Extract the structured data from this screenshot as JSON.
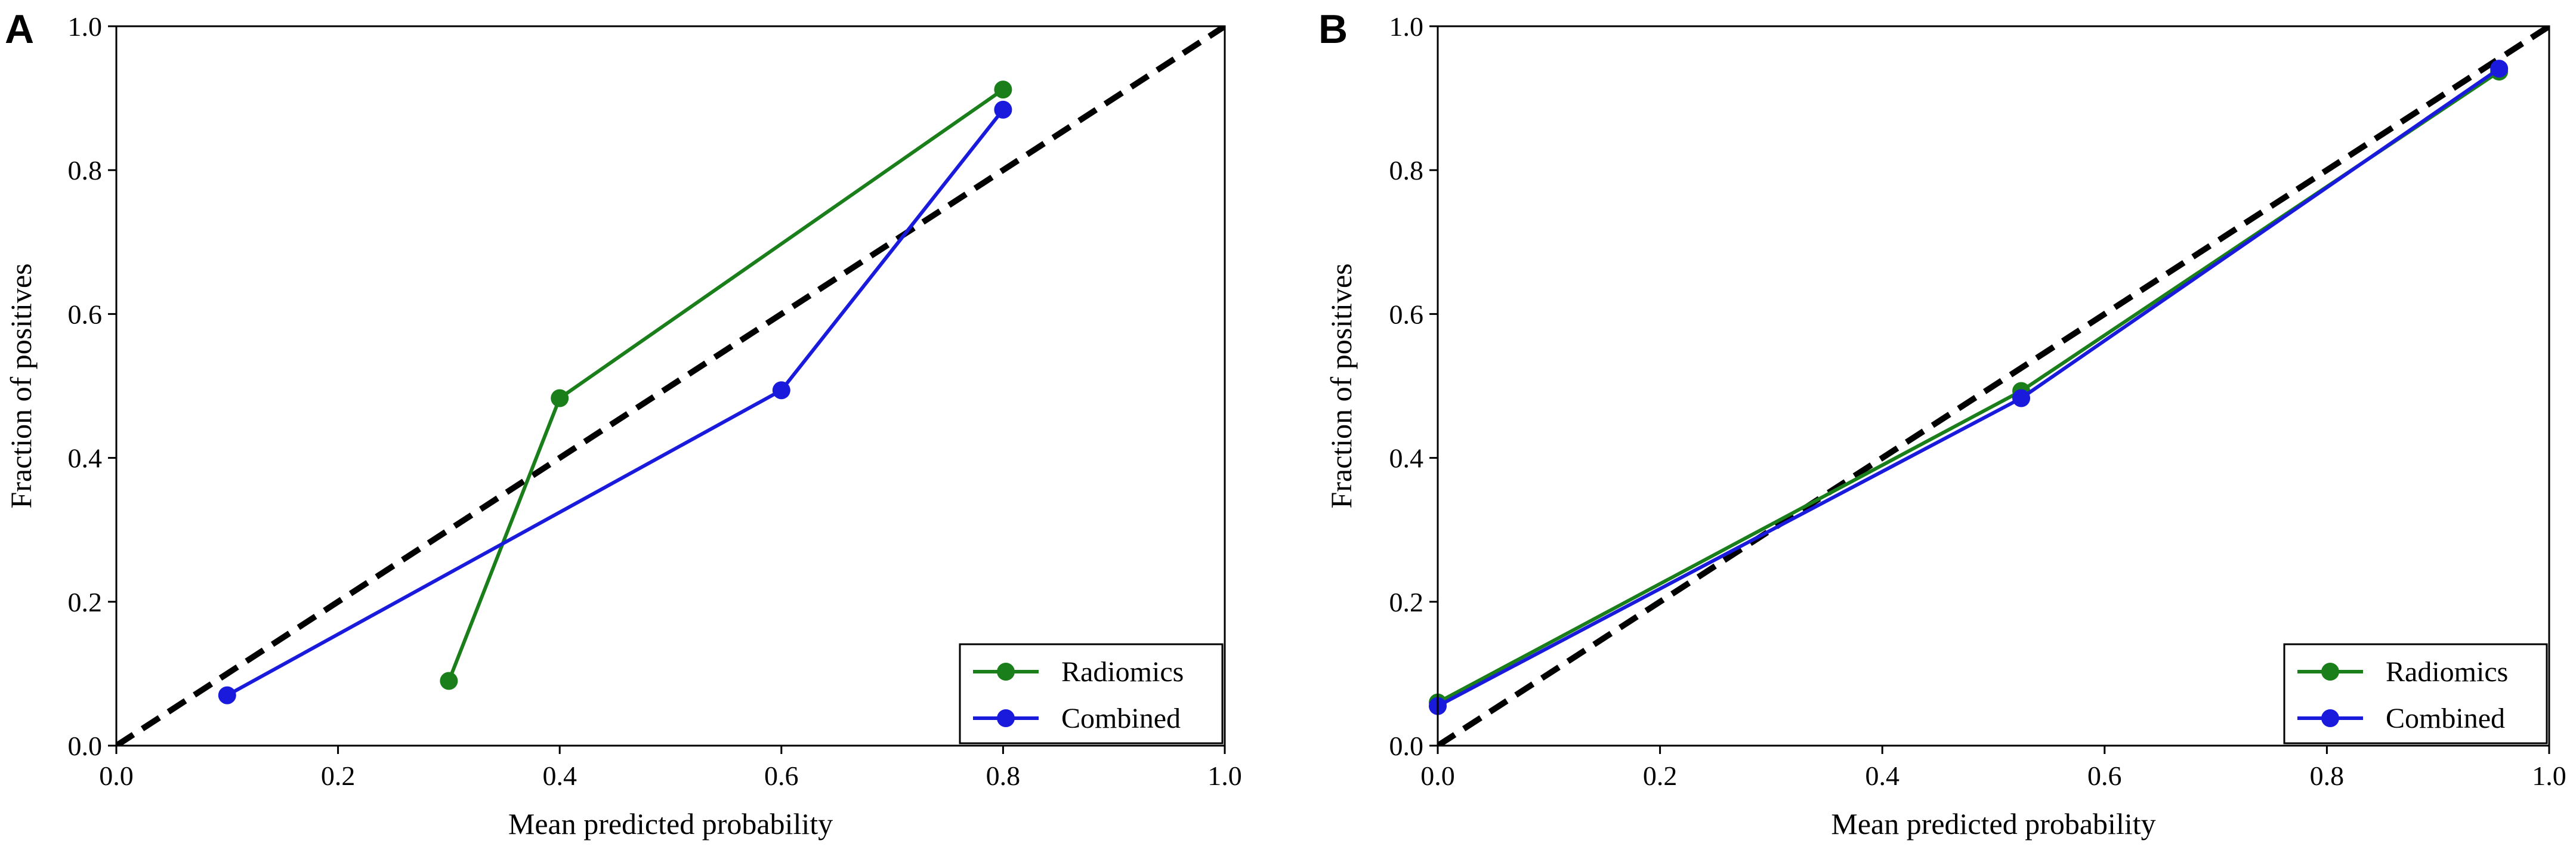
{
  "chart_data": [
    {
      "type": "line",
      "panel_label": "A",
      "xlabel": "Mean predicted probability",
      "ylabel": "Fraction of positives",
      "xlim": [
        0.0,
        1.0
      ],
      "ylim": [
        0.0,
        1.0
      ],
      "xticks": [
        "0.0",
        "0.2",
        "0.4",
        "0.6",
        "0.8",
        "1.0"
      ],
      "yticks": [
        "0.0",
        "0.2",
        "0.4",
        "0.6",
        "0.8",
        "1.0"
      ],
      "reference_line": {
        "x": [
          0,
          1
        ],
        "y": [
          0,
          1
        ],
        "style": "dashed",
        "color": "#000000"
      },
      "legend_position": "lower-right",
      "series": [
        {
          "name": "Radiomics",
          "color": "#1a7f1a",
          "x": [
            0.3,
            0.4,
            0.8
          ],
          "y": [
            0.09,
            0.483,
            0.912
          ]
        },
        {
          "name": "Combined",
          "color": "#1a1adc",
          "x": [
            0.1,
            0.6,
            0.8
          ],
          "y": [
            0.07,
            0.494,
            0.884
          ]
        }
      ]
    },
    {
      "type": "line",
      "panel_label": "B",
      "xlabel": "Mean predicted probability",
      "ylabel": "Fraction of positives",
      "xlim": [
        0.0,
        1.0
      ],
      "ylim": [
        0.0,
        1.0
      ],
      "xticks": [
        "0.0",
        "0.2",
        "0.4",
        "0.6",
        "0.8",
        "1.0"
      ],
      "yticks": [
        "0.0",
        "0.2",
        "0.4",
        "0.6",
        "0.8",
        "1.0"
      ],
      "reference_line": {
        "x": [
          0,
          1
        ],
        "y": [
          0,
          1
        ],
        "style": "dashed",
        "color": "#000000"
      },
      "legend_position": "lower-right",
      "series": [
        {
          "name": "Radiomics",
          "color": "#1a7f1a",
          "x": [
            0.0,
            0.525,
            0.955
          ],
          "y": [
            0.06,
            0.493,
            0.937
          ]
        },
        {
          "name": "Combined",
          "color": "#1a1adc",
          "x": [
            0.0,
            0.525,
            0.955
          ],
          "y": [
            0.055,
            0.483,
            0.941
          ]
        }
      ]
    }
  ]
}
